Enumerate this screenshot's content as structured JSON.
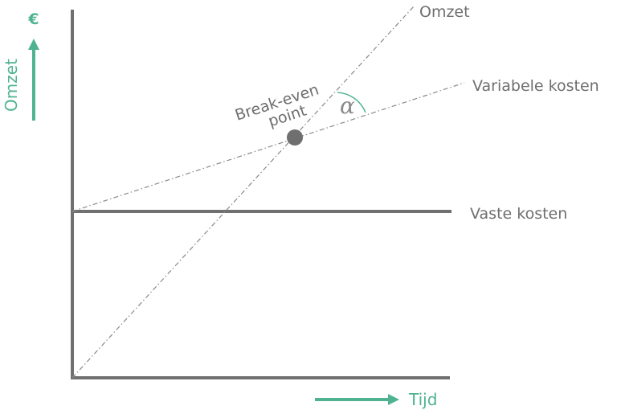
{
  "labels": {
    "omzet_line": "Omzet",
    "variabele_kosten": "Variabele kosten",
    "vaste_kosten": "Vaste kosten",
    "break_even_line1": "Break-even",
    "break_even_line2": "point",
    "alpha": "α",
    "y_axis_title": "Omzet",
    "y_axis_unit": "€",
    "x_axis_title": "Tijd"
  },
  "colors": {
    "axis": "#707070",
    "accent": "#4fb393",
    "text": "#6f6f6f"
  }
}
